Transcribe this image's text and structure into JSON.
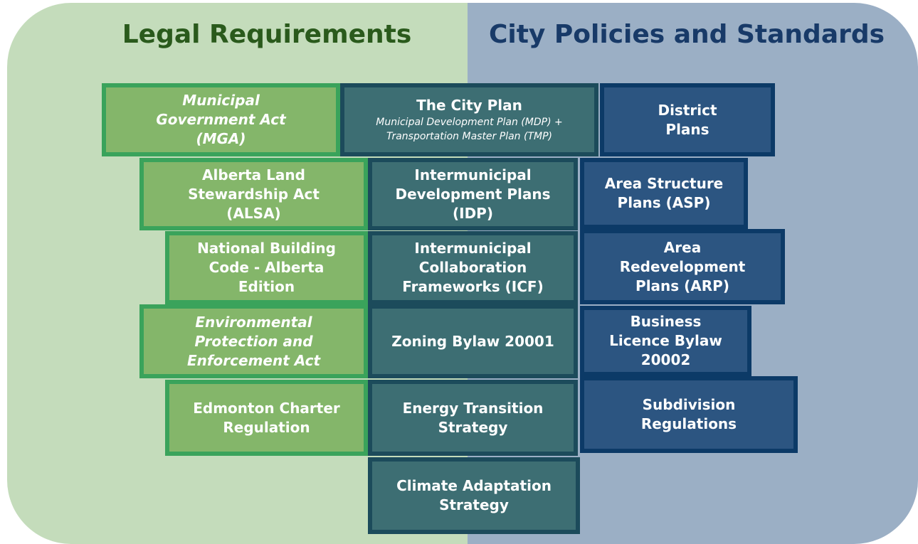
{
  "header": {
    "left_title": "Legal Requirements",
    "right_title": "City Policies and Standards"
  },
  "legal": [
    {
      "lines": [
        "Municipal",
        "Government Act",
        "(MGA)"
      ],
      "italic": true
    },
    {
      "lines": [
        "Alberta Land",
        "Stewardship Act",
        "(ALSA)"
      ],
      "italic": false
    },
    {
      "lines": [
        "National Building",
        "Code - Alberta",
        "Edition"
      ],
      "italic": false
    },
    {
      "lines": [
        "Environmental",
        "Protection and",
        "Enforcement Act"
      ],
      "italic": true
    },
    {
      "lines": [
        "Edmonton Charter",
        "Regulation"
      ],
      "italic": false
    }
  ],
  "city": [
    {
      "lines": [
        "The City Plan"
      ],
      "sub": [
        "Municipal Development Plan (MDP) +",
        "Transportation Master Plan (TMP)"
      ]
    },
    {
      "lines": [
        "Intermunicipal",
        "Development Plans",
        "(IDP)"
      ]
    },
    {
      "lines": [
        "Intermunicipal",
        "Collaboration",
        "Frameworks (ICF)"
      ]
    },
    {
      "lines": [
        "Zoning Bylaw 20001"
      ]
    },
    {
      "lines": [
        "Energy Transition",
        "Strategy"
      ]
    },
    {
      "lines": [
        "Climate Adaptation",
        "Strategy"
      ]
    }
  ],
  "policy": [
    {
      "lines": [
        "District",
        "Plans"
      ]
    },
    {
      "lines": [
        "Area Structure",
        "Plans (ASP)"
      ]
    },
    {
      "lines": [
        "Area",
        "Redevelopment",
        "Plans (ARP)"
      ]
    },
    {
      "lines": [
        "Business",
        "Licence Bylaw",
        "20002"
      ]
    },
    {
      "lines": [
        "Subdivision",
        "Regulations"
      ]
    }
  ]
}
